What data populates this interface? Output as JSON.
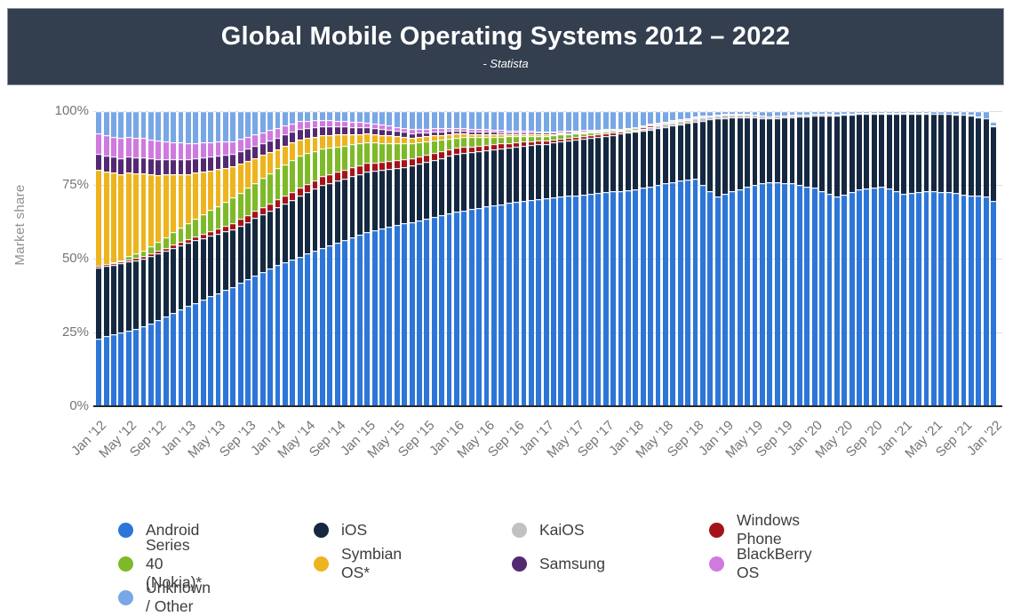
{
  "header": {
    "title": "Global Mobile Operating Systems 2012 – 2022",
    "subtitle": "- Statista",
    "background_color": "#333e4f",
    "text_color": "#ffffff"
  },
  "y_axis": {
    "label": "Market share",
    "tick_labels": [
      "100%",
      "75%",
      "50%",
      "25%",
      "0%"
    ],
    "tick_values": [
      100,
      75,
      50,
      25,
      0
    ]
  },
  "x_axis": {
    "tick_every_n_bars": 4,
    "tick_labels": [
      "Jan '12",
      "May '12",
      "Sep '12",
      "Jan '13",
      "May '13",
      "Sep '13",
      "Jan '14",
      "May '14",
      "Sep '14",
      "Jan '15",
      "May '15",
      "Sep '15",
      "Jan '16",
      "May '16",
      "Sep '16",
      "Jan '17",
      "May '17",
      "Sep '17",
      "Jan '18",
      "May '18",
      "Sep '18",
      "Jan '19",
      "May '19",
      "Sep '19",
      "Jan '20",
      "May '20",
      "Sep '20",
      "Jan '21",
      "May '21",
      "Sep '21",
      "Jan '22"
    ]
  },
  "chart_data": {
    "type": "bar",
    "stacked": true,
    "unit": "percent market share",
    "title": "Global Mobile Operating Systems 2012 – 2022",
    "ylabel": "Market share",
    "ylim": [
      0,
      100
    ],
    "grid": "horizontal, faint",
    "n_months": 121,
    "first_month": "Jan 2012",
    "last_month": "Jan 2022",
    "month_index_note": "month 0 = Jan 2012, month 120 = Jan 2022; keyframes are [monthIndex, percent] values read from the chart, months in between are linearly interpolated",
    "total_cap_default": 100,
    "total_cap_overrides": {
      "120": 96.5
    },
    "series": [
      {
        "key": "android",
        "name": "Android",
        "color": "#2d76d8",
        "keyframes": [
          [
            0,
            23
          ],
          [
            6,
            27
          ],
          [
            12,
            34
          ],
          [
            18,
            40.5
          ],
          [
            24,
            48
          ],
          [
            30,
            53.5
          ],
          [
            36,
            59
          ],
          [
            42,
            62.5
          ],
          [
            48,
            66
          ],
          [
            54,
            68.5
          ],
          [
            60,
            70.5
          ],
          [
            66,
            72
          ],
          [
            72,
            73.5
          ],
          [
            78,
            76.5
          ],
          [
            80,
            77
          ],
          [
            83,
            71
          ],
          [
            87,
            74.5
          ],
          [
            90,
            76
          ],
          [
            93,
            75.5
          ],
          [
            96,
            74
          ],
          [
            99,
            71
          ],
          [
            102,
            73.5
          ],
          [
            105,
            74.5
          ],
          [
            108,
            72
          ],
          [
            111,
            73
          ],
          [
            114,
            72.5
          ],
          [
            117,
            71.5
          ],
          [
            119,
            71
          ],
          [
            120,
            69.5
          ]
        ]
      },
      {
        "key": "ios",
        "name": "iOS",
        "color": "#152840",
        "keyframes": [
          [
            0,
            24
          ],
          [
            6,
            23
          ],
          [
            12,
            21.5
          ],
          [
            18,
            19.5
          ],
          [
            24,
            19.5
          ],
          [
            30,
            21.5
          ],
          [
            36,
            20.5
          ],
          [
            42,
            19
          ],
          [
            48,
            19.5
          ],
          [
            54,
            19
          ],
          [
            60,
            18.5
          ],
          [
            66,
            19
          ],
          [
            72,
            19.5
          ],
          [
            78,
            19
          ],
          [
            80,
            19.5
          ],
          [
            83,
            26.5
          ],
          [
            87,
            23.5
          ],
          [
            90,
            21.5
          ],
          [
            93,
            22.5
          ],
          [
            96,
            24.5
          ],
          [
            99,
            27.5
          ],
          [
            102,
            25.5
          ],
          [
            105,
            24.5
          ],
          [
            108,
            27
          ],
          [
            111,
            26
          ],
          [
            114,
            26.5
          ],
          [
            117,
            27
          ],
          [
            119,
            26.5
          ],
          [
            120,
            25.5
          ]
        ]
      },
      {
        "key": "kaios",
        "name": "KaiOS",
        "color": "#c1c1c1",
        "keyframes": [
          [
            0,
            0
          ],
          [
            71,
            0
          ],
          [
            74,
            0.9
          ],
          [
            78,
            1.1
          ],
          [
            84,
            1.1
          ],
          [
            90,
            0.8
          ],
          [
            96,
            0.5
          ],
          [
            108,
            0.3
          ],
          [
            120,
            0.15
          ]
        ]
      },
      {
        "key": "windows_phone",
        "name": "Windows Phone",
        "color": "#a5131a",
        "keyframes": [
          [
            0,
            0.5
          ],
          [
            12,
            1.2
          ],
          [
            18,
            2.2
          ],
          [
            24,
            2.6
          ],
          [
            30,
            2.9
          ],
          [
            36,
            2.9
          ],
          [
            42,
            2.6
          ],
          [
            48,
            2.1
          ],
          [
            54,
            1.6
          ],
          [
            60,
            1.2
          ],
          [
            66,
            0.8
          ],
          [
            72,
            0.5
          ],
          [
            78,
            0.25
          ],
          [
            84,
            0.1
          ],
          [
            90,
            0.05
          ],
          [
            96,
            0
          ],
          [
            120,
            0
          ]
        ]
      },
      {
        "key": "series40",
        "name": "Series 40 (Nokia)*",
        "color": "#7eba28",
        "keyframes": [
          [
            0,
            0
          ],
          [
            3,
            0.2
          ],
          [
            4,
            1.2
          ],
          [
            8,
            2.8
          ],
          [
            12,
            5.5
          ],
          [
            18,
            8.5
          ],
          [
            24,
            10.5
          ],
          [
            27,
            11
          ],
          [
            30,
            9.5
          ],
          [
            36,
            7
          ],
          [
            42,
            5
          ],
          [
            48,
            3.5
          ],
          [
            54,
            2.3
          ],
          [
            60,
            1.5
          ],
          [
            66,
            0.9
          ],
          [
            72,
            0.4
          ],
          [
            78,
            0.15
          ],
          [
            84,
            0.05
          ],
          [
            90,
            0
          ],
          [
            120,
            0
          ]
        ]
      },
      {
        "key": "symbian",
        "name": "Symbian OS*",
        "color": "#eeb41e",
        "keyframes": [
          [
            0,
            32.5
          ],
          [
            6,
            26
          ],
          [
            12,
            16.5
          ],
          [
            18,
            10.5
          ],
          [
            24,
            6.5
          ],
          [
            30,
            4.5
          ],
          [
            36,
            3
          ],
          [
            42,
            2
          ],
          [
            48,
            1.3
          ],
          [
            54,
            0.8
          ],
          [
            60,
            0.5
          ],
          [
            66,
            0.3
          ],
          [
            72,
            0.1
          ],
          [
            78,
            0.05
          ],
          [
            84,
            0
          ],
          [
            120,
            0
          ]
        ]
      },
      {
        "key": "samsung",
        "name": "Samsung",
        "color": "#532a72",
        "keyframes": [
          [
            0,
            5.5
          ],
          [
            6,
            5.5
          ],
          [
            12,
            5
          ],
          [
            18,
            4.5
          ],
          [
            24,
            4
          ],
          [
            30,
            3
          ],
          [
            36,
            2.2
          ],
          [
            42,
            1.5
          ],
          [
            48,
            1
          ],
          [
            54,
            0.7
          ],
          [
            60,
            0.45
          ],
          [
            66,
            0.3
          ],
          [
            72,
            0.15
          ],
          [
            78,
            0.1
          ],
          [
            84,
            0.05
          ],
          [
            90,
            0
          ],
          [
            120,
            0
          ]
        ]
      },
      {
        "key": "blackberry",
        "name": "BlackBerry OS",
        "color": "#cf7ade",
        "keyframes": [
          [
            0,
            7
          ],
          [
            6,
            6.5
          ],
          [
            12,
            5.5
          ],
          [
            18,
            4.2
          ],
          [
            24,
            3.2
          ],
          [
            30,
            2.2
          ],
          [
            36,
            1.6
          ],
          [
            42,
            1.3
          ],
          [
            48,
            1
          ],
          [
            54,
            0.7
          ],
          [
            60,
            0.5
          ],
          [
            66,
            0.35
          ],
          [
            72,
            0.2
          ],
          [
            78,
            0.1
          ],
          [
            84,
            0.05
          ],
          [
            90,
            0
          ],
          [
            120,
            0
          ]
        ]
      },
      {
        "key": "unknown",
        "name": "Unknown / Other",
        "color": "#78a7e6",
        "derivation": "remainder",
        "keyframes": null
      }
    ],
    "legend_position": "bottom, 4 columns, round swatches"
  },
  "legend": {
    "rows": [
      [
        "android",
        "ios",
        "kaios",
        "windows_phone"
      ],
      [
        "series40",
        "symbian",
        "samsung",
        "blackberry"
      ],
      [
        "unknown"
      ]
    ]
  }
}
